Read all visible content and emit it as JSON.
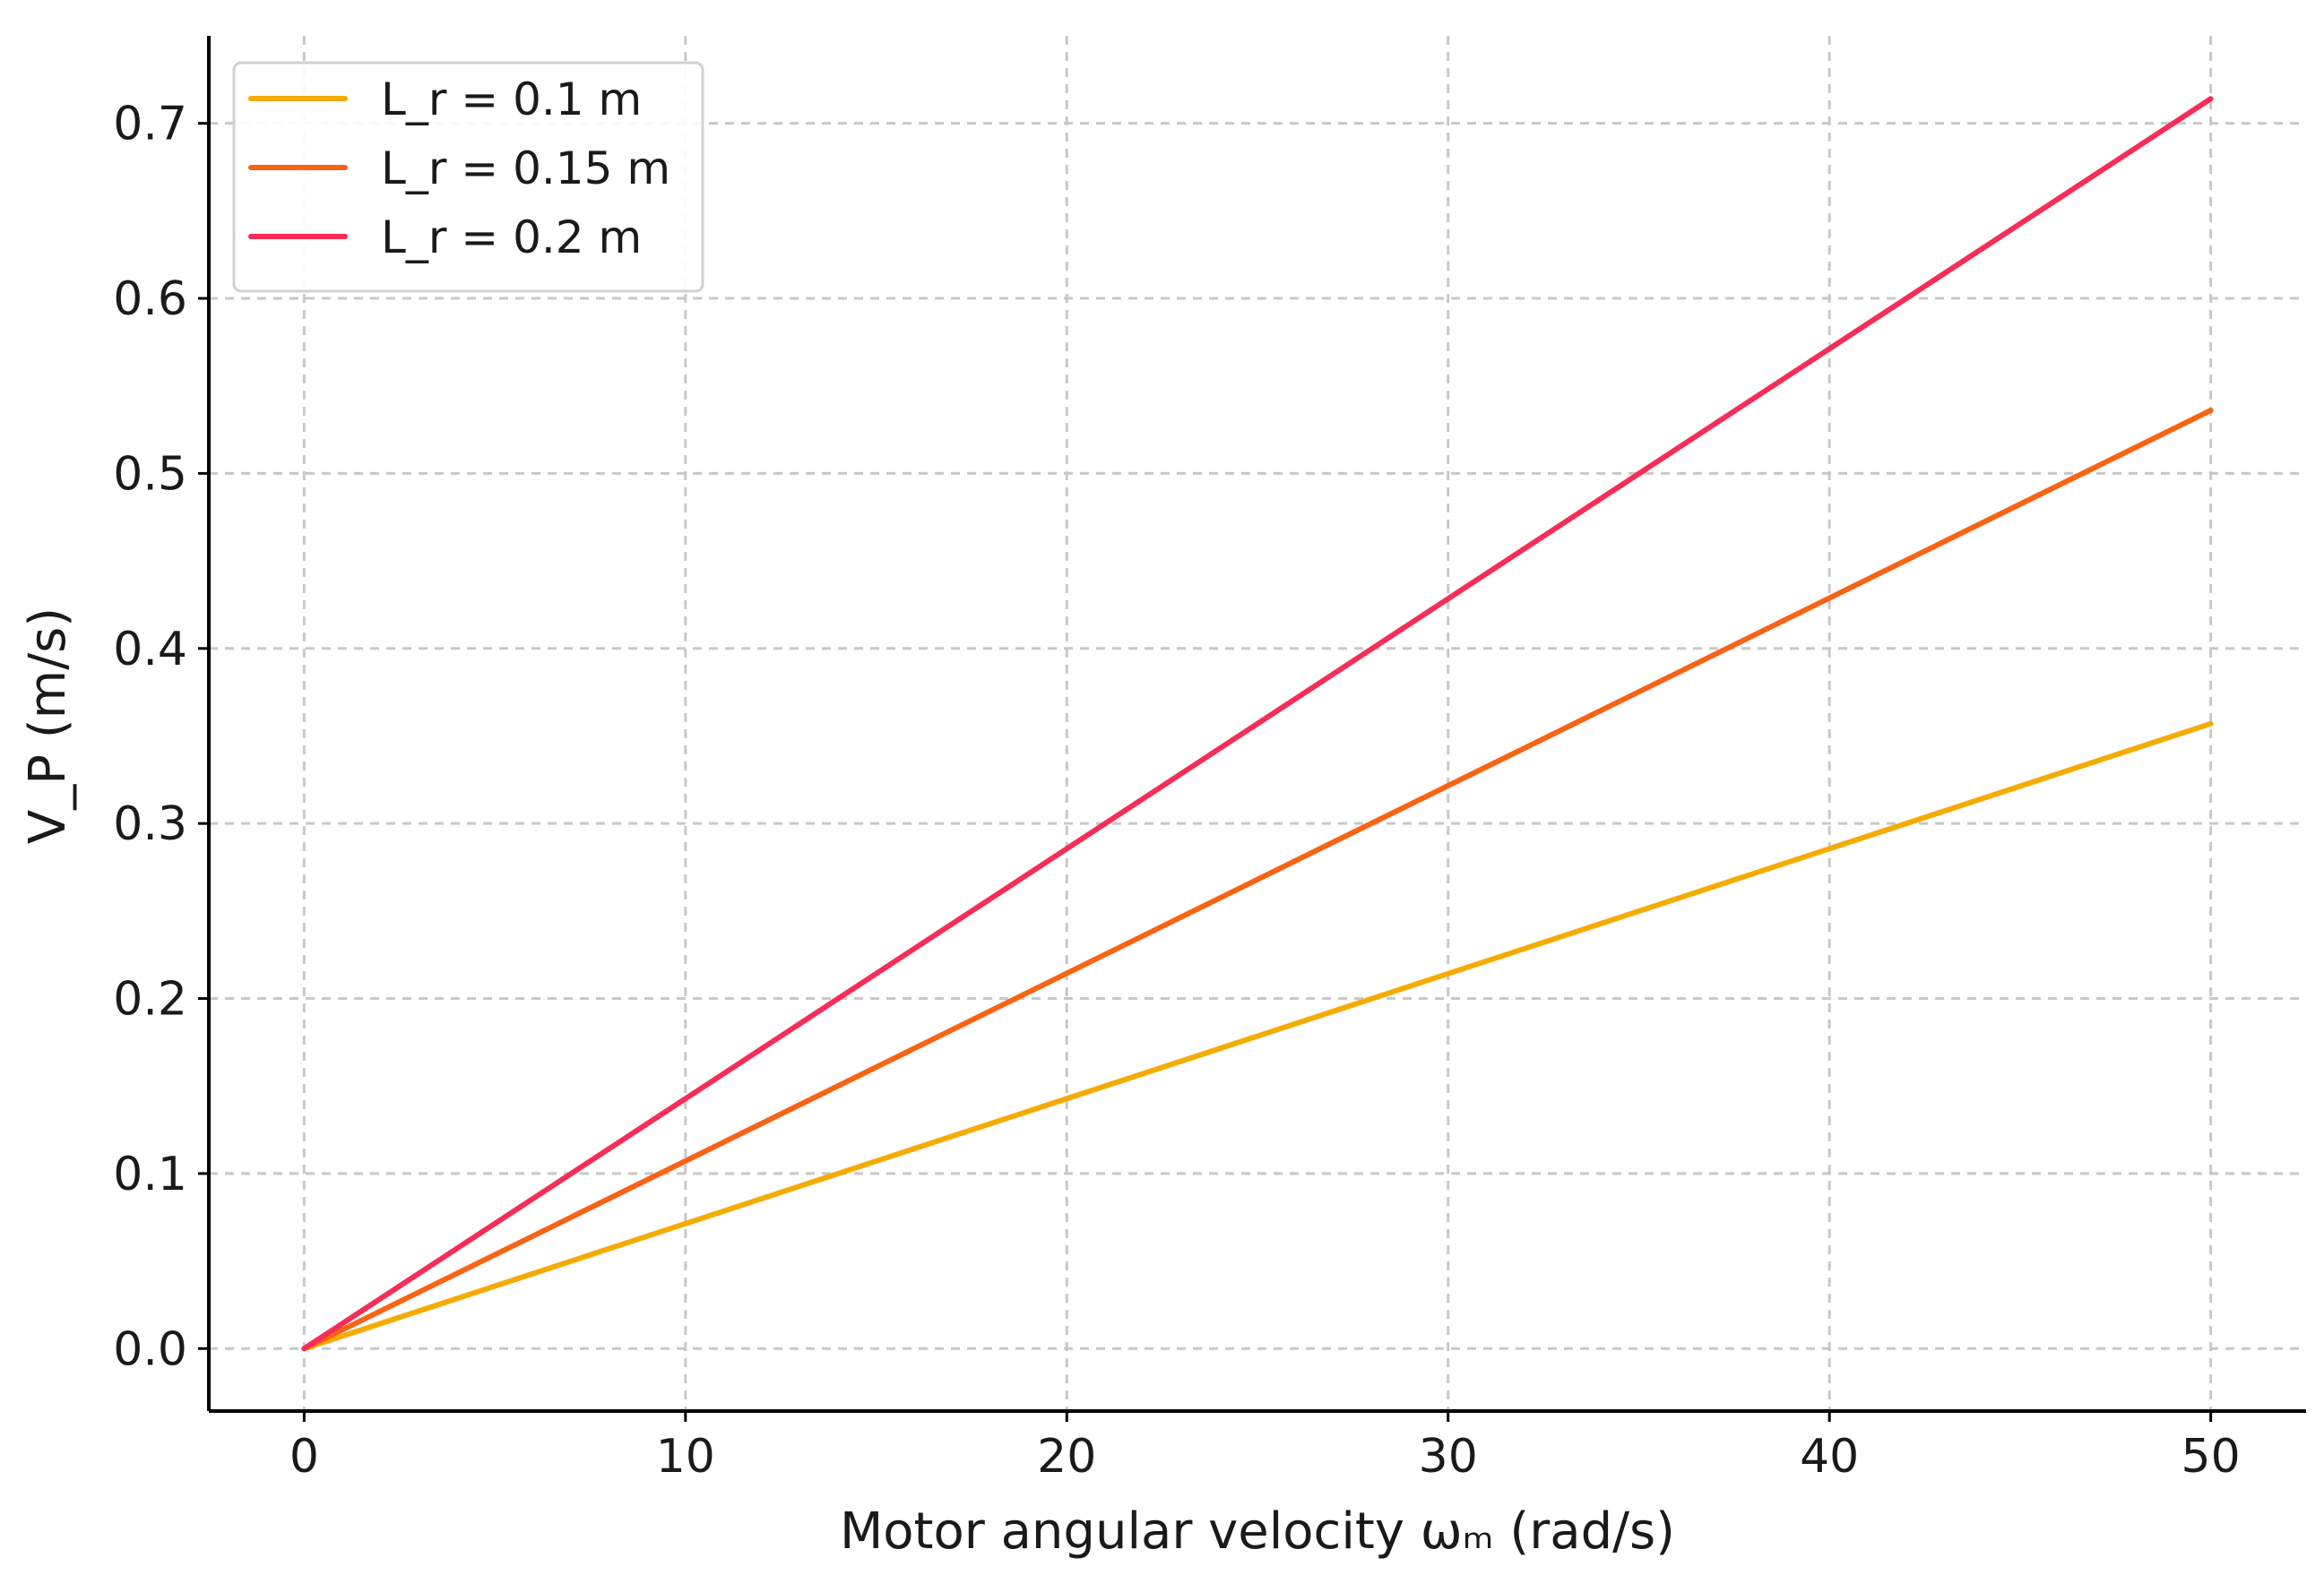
{
  "chart_data": {
    "type": "line",
    "title": "",
    "xlabel": "Motor angular velocity ωₘ (rad/s)",
    "ylabel": "V_P (m/s)",
    "xlim": [
      -2.5,
      52.5
    ],
    "ylim": [
      -0.0357,
      0.75
    ],
    "x_ticks": [
      0,
      10,
      20,
      30,
      40,
      50
    ],
    "x_tick_labels": [
      "0",
      "10",
      "20",
      "30",
      "40",
      "50"
    ],
    "y_ticks": [
      0.0,
      0.1,
      0.2,
      0.3,
      0.4,
      0.5,
      0.6,
      0.7
    ],
    "y_tick_labels": [
      "0.0",
      "0.1",
      "0.2",
      "0.3",
      "0.4",
      "0.5",
      "0.6",
      "0.7"
    ],
    "grid": true,
    "legend_position": "top-left",
    "series": [
      {
        "name": "L_r = 0.1 m",
        "color": "#f5ab00",
        "x": [
          0,
          50
        ],
        "y": [
          0.0,
          0.357
        ]
      },
      {
        "name": "L_r = 0.15 m",
        "color": "#f86314",
        "x": [
          0,
          50
        ],
        "y": [
          0.0,
          0.536
        ]
      },
      {
        "name": "L_r = 0.2 m",
        "color": "#f72d58",
        "x": [
          0,
          50
        ],
        "y": [
          0.0,
          0.714
        ]
      }
    ]
  }
}
